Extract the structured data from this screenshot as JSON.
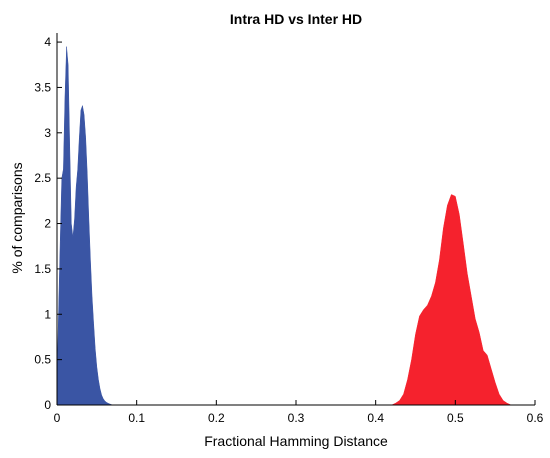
{
  "chart_data": {
    "type": "area",
    "title": "Intra HD vs Inter HD",
    "xlabel": "Fractional Hamming Distance",
    "ylabel": "% of comparisons",
    "xlim": [
      0,
      0.6
    ],
    "ylim": [
      0,
      4.1
    ],
    "grid": false,
    "legend": "none",
    "x_ticks": [
      "0",
      "0.1",
      "0.2",
      "0.3",
      "0.4",
      "0.5",
      "0.6"
    ],
    "y_ticks": [
      "0",
      "0.5",
      "1",
      "1.5",
      "2",
      "2.5",
      "3",
      "3.5",
      "4"
    ],
    "series": [
      {
        "color": "#3a55a4",
        "x": [
          0.0,
          0.002,
          0.004,
          0.006,
          0.008,
          0.01,
          0.012,
          0.014,
          0.016,
          0.018,
          0.02,
          0.022,
          0.024,
          0.026,
          0.028,
          0.03,
          0.032,
          0.034,
          0.036,
          0.038,
          0.04,
          0.042,
          0.044,
          0.046,
          0.048,
          0.05,
          0.052,
          0.054,
          0.056,
          0.058,
          0.06,
          0.062,
          0.064,
          0.066,
          0.068,
          0.07
        ],
        "y": [
          0.2,
          1.05,
          1.8,
          2.5,
          2.6,
          3.4,
          3.95,
          3.75,
          2.85,
          2.0,
          1.85,
          2.05,
          2.4,
          2.6,
          2.95,
          3.25,
          3.3,
          3.2,
          2.95,
          2.55,
          2.05,
          1.6,
          1.2,
          0.9,
          0.62,
          0.42,
          0.28,
          0.18,
          0.11,
          0.07,
          0.045,
          0.03,
          0.02,
          0.012,
          0.006,
          0.0
        ]
      },
      {
        "color": "#f5222d",
        "x": [
          0.42,
          0.425,
          0.43,
          0.435,
          0.44,
          0.445,
          0.45,
          0.455,
          0.46,
          0.465,
          0.47,
          0.475,
          0.48,
          0.485,
          0.49,
          0.495,
          0.5,
          0.505,
          0.51,
          0.515,
          0.52,
          0.525,
          0.53,
          0.535,
          0.54,
          0.545,
          0.55,
          0.555,
          0.56,
          0.565,
          0.57
        ],
        "y": [
          0.0,
          0.02,
          0.05,
          0.12,
          0.28,
          0.5,
          0.78,
          0.98,
          1.05,
          1.1,
          1.2,
          1.35,
          1.6,
          1.95,
          2.2,
          2.32,
          2.3,
          2.1,
          1.78,
          1.45,
          1.2,
          0.95,
          0.8,
          0.6,
          0.55,
          0.4,
          0.25,
          0.12,
          0.05,
          0.02,
          0.0
        ]
      }
    ]
  }
}
